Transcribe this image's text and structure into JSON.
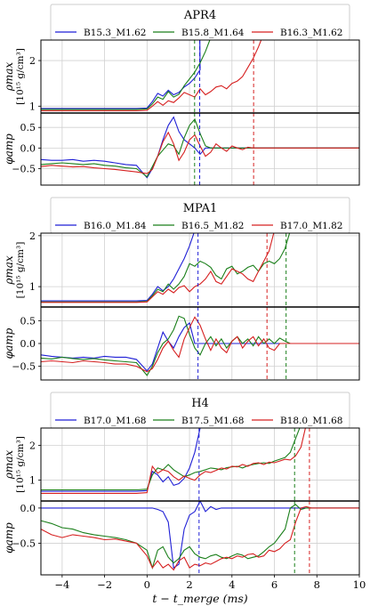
{
  "chart_data": {
    "type": "line",
    "xlabel": "t − t_merge (ms)",
    "xlim": [
      -5,
      10
    ],
    "xticks": [
      -4,
      -2,
      0,
      2,
      4,
      6,
      8,
      10
    ],
    "colors": [
      "#1f1fd6",
      "#1a7f1a",
      "#d62020"
    ],
    "x": [
      -5,
      -4.5,
      -4,
      -3.5,
      -3,
      -2.5,
      -2,
      -1.5,
      -1,
      -0.5,
      0,
      0.25,
      0.5,
      0.75,
      1,
      1.25,
      1.5,
      1.75,
      2,
      2.25,
      2.5,
      2.75,
      3,
      3.25,
      3.5,
      3.75,
      4,
      4.25,
      4.5,
      4.75,
      5,
      5.25,
      5.5,
      5.75,
      6,
      6.25,
      6.5,
      6.75,
      7,
      7.25,
      7.5,
      7.75,
      8,
      8.5,
      9,
      9.5,
      10
    ],
    "panels": [
      {
        "title": "APR4",
        "legend": [
          "B15.3_M1.62",
          "B15.8_M1.64",
          "B16.3_M1.62"
        ],
        "rho": {
          "ylabel_main": "ρmax",
          "ylabel_unit": "[10¹⁵ g/cm³]",
          "yrange": [
            0.85,
            2.45
          ],
          "yticks": [
            1,
            2
          ],
          "series": [
            [
              0.95,
              0.95,
              0.95,
              0.95,
              0.95,
              0.95,
              0.95,
              0.95,
              0.95,
              0.95,
              0.96,
              1.1,
              1.28,
              1.22,
              1.35,
              1.25,
              1.3,
              1.42,
              1.5,
              1.62,
              1.8
            ],
            [
              0.93,
              0.93,
              0.93,
              0.93,
              0.93,
              0.93,
              0.93,
              0.93,
              0.93,
              0.93,
              0.94,
              1.05,
              1.2,
              1.15,
              1.32,
              1.2,
              1.26,
              1.45,
              1.6,
              1.75,
              1.95,
              2.2,
              2.5
            ],
            [
              0.9,
              0.9,
              0.9,
              0.9,
              0.9,
              0.9,
              0.9,
              0.9,
              0.9,
              0.9,
              0.91,
              1.0,
              1.1,
              1.02,
              1.12,
              1.08,
              1.18,
              1.3,
              1.25,
              1.2,
              1.38,
              1.25,
              1.32,
              1.42,
              1.45,
              1.38,
              1.5,
              1.55,
              1.65,
              1.85,
              2.05,
              2.3,
              2.6
            ]
          ],
          "series_ends": [
            2.48,
            2.24,
            5.02
          ]
        },
        "phase": {
          "ylabel": "φamp",
          "yrange": [
            -0.9,
            0.85
          ],
          "yticks": [
            0.5,
            0.0,
            -0.5
          ],
          "yticklabels": [
            "0.5",
            "0.0",
            "−0.5"
          ],
          "series": [
            [
              -0.28,
              -0.3,
              -0.3,
              -0.28,
              -0.32,
              -0.3,
              -0.32,
              -0.36,
              -0.4,
              -0.42,
              -0.72,
              -0.5,
              -0.2,
              0.2,
              0.55,
              0.75,
              0.4,
              0.2,
              0.1,
              0.0,
              -0.15,
              0.0,
              0.0,
              0.0,
              0.0,
              0.0,
              0.0,
              0.0,
              0.0,
              0.0,
              0.0,
              0.0,
              0.0,
              0.0,
              0.0,
              0.0,
              0.0,
              0.0,
              0.0,
              0.0,
              0.0,
              0.0,
              0.0,
              0.0,
              0.0,
              0.0,
              0.0
            ],
            [
              -0.4,
              -0.38,
              -0.36,
              -0.38,
              -0.4,
              -0.38,
              -0.42,
              -0.44,
              -0.48,
              -0.5,
              -0.7,
              -0.45,
              -0.2,
              -0.05,
              0.1,
              0.05,
              -0.15,
              0.25,
              0.55,
              0.7,
              0.35,
              0.05,
              0.0,
              0.0,
              0.0,
              0.0,
              0.0,
              0.0,
              0.0,
              0.0,
              0.0,
              0.0,
              0.0,
              0.0,
              0.0,
              0.0,
              0.0,
              0.0,
              0.0,
              0.0,
              0.0,
              0.0,
              0.0,
              0.0,
              0.0,
              0.0,
              0.0
            ],
            [
              -0.45,
              -0.42,
              -0.44,
              -0.46,
              -0.45,
              -0.48,
              -0.5,
              -0.52,
              -0.55,
              -0.58,
              -0.62,
              -0.52,
              -0.2,
              0.15,
              0.38,
              0.1,
              -0.3,
              -0.1,
              0.2,
              0.32,
              0.05,
              -0.2,
              -0.1,
              0.1,
              0.0,
              -0.08,
              0.05,
              0.0,
              -0.04,
              0.02,
              0.0,
              0.0,
              0.0,
              0.0,
              0.0,
              0.0,
              0.0,
              0.0,
              0.0,
              0.0,
              0.0,
              0.0,
              0.0,
              0.0,
              0.0,
              0.0,
              0.0
            ]
          ]
        },
        "vlines": [
          2.48,
          2.24,
          5.02
        ]
      },
      {
        "title": "MPA1",
        "legend": [
          "B16.0_M1.84",
          "B16.5_M1.82",
          "B17.0_M1.82"
        ],
        "rho": {
          "ylabel_main": "ρmax",
          "ylabel_unit": "[10¹⁵ g/cm³]",
          "yrange": [
            0.6,
            2.05
          ],
          "yticks": [
            1,
            2
          ],
          "series": [
            [
              0.72,
              0.72,
              0.72,
              0.72,
              0.72,
              0.72,
              0.72,
              0.72,
              0.72,
              0.72,
              0.73,
              0.85,
              1.0,
              0.92,
              1.0,
              1.15,
              1.35,
              1.55,
              1.8,
              2.1
            ],
            [
              0.7,
              0.7,
              0.7,
              0.7,
              0.7,
              0.7,
              0.7,
              0.7,
              0.7,
              0.7,
              0.71,
              0.82,
              0.95,
              0.9,
              1.05,
              0.95,
              1.05,
              1.2,
              1.45,
              1.4,
              1.5,
              1.45,
              1.38,
              1.22,
              1.15,
              1.35,
              1.4,
              1.25,
              1.3,
              1.38,
              1.42,
              1.3,
              1.45,
              1.5,
              1.45,
              1.55,
              1.75,
              2.1
            ],
            [
              0.69,
              0.69,
              0.69,
              0.69,
              0.69,
              0.69,
              0.69,
              0.69,
              0.69,
              0.69,
              0.7,
              0.8,
              0.9,
              0.85,
              0.95,
              0.88,
              0.98,
              1.02,
              0.9,
              1.0,
              1.05,
              1.15,
              1.3,
              1.1,
              1.05,
              1.2,
              1.35,
              1.3,
              1.25,
              1.15,
              1.1,
              1.3,
              1.5,
              1.7,
              2.1
            ]
          ],
          "series_ends": [
            2.4,
            6.55,
            5.65
          ]
        },
        "phase": {
          "ylabel": "φamp",
          "yrange": [
            -0.8,
            0.8
          ],
          "yticks": [
            0.5,
            0.0,
            -0.5
          ],
          "yticklabels": [
            "0.5",
            "0.0",
            "−0.5"
          ],
          "series": [
            [
              -0.25,
              -0.28,
              -0.3,
              -0.32,
              -0.3,
              -0.32,
              -0.28,
              -0.3,
              -0.3,
              -0.35,
              -0.6,
              -0.45,
              -0.1,
              0.25,
              0.05,
              -0.1,
              0.15,
              0.35,
              0.45,
              0.0,
              0.0,
              0.0,
              0.0,
              0.0,
              0.0,
              0.0,
              0.0,
              0.0,
              0.0,
              0.0,
              0.0,
              0.0,
              0.0,
              0.0,
              0.0,
              0.0,
              0.0,
              0.0,
              0.0,
              0.0,
              0.0,
              0.0,
              0.0,
              0.0,
              0.0,
              0.0,
              0.0
            ],
            [
              -0.32,
              -0.34,
              -0.3,
              -0.33,
              -0.35,
              -0.33,
              -0.36,
              -0.38,
              -0.4,
              -0.42,
              -0.7,
              -0.5,
              -0.2,
              0.0,
              0.1,
              0.3,
              0.6,
              0.55,
              0.2,
              -0.1,
              -0.25,
              0.0,
              0.15,
              -0.05,
              0.1,
              -0.1,
              0.05,
              0.15,
              0.0,
              0.1,
              -0.05,
              0.15,
              0.0,
              0.1,
              0.0,
              0.12,
              0.05,
              0.0,
              0.0,
              0.0,
              0.0,
              0.0,
              0.0,
              0.0,
              0.0,
              0.0,
              0.0
            ],
            [
              -0.4,
              -0.38,
              -0.4,
              -0.42,
              -0.38,
              -0.4,
              -0.42,
              -0.45,
              -0.45,
              -0.5,
              -0.62,
              -0.55,
              -0.35,
              -0.1,
              0.05,
              -0.15,
              -0.3,
              0.1,
              0.35,
              0.58,
              0.4,
              0.1,
              -0.15,
              0.1,
              -0.1,
              -0.2,
              0.05,
              0.15,
              -0.1,
              0.05,
              0.15,
              -0.05,
              0.1,
              -0.1,
              -0.15,
              0.0,
              0.0,
              0.0,
              0.0,
              0.0,
              0.0,
              0.0,
              0.0,
              0.0,
              0.0,
              0.0,
              0.0
            ]
          ]
        },
        "vlines": [
          2.4,
          6.55,
          5.65
        ]
      },
      {
        "title": "H4",
        "legend": [
          "B17.0_M1.68",
          "B17.5_M1.68",
          "B18.0_M1.68"
        ],
        "rho": {
          "ylabel_main": "ρmax",
          "ylabel_unit": "[10¹⁵ g/cm³]",
          "yrange": [
            0.4,
            2.5
          ],
          "yticks": [
            1,
            2
          ],
          "series": [
            [
              0.68,
              0.68,
              0.68,
              0.68,
              0.68,
              0.68,
              0.68,
              0.68,
              0.68,
              0.68,
              0.7,
              1.25,
              1.15,
              0.95,
              1.1,
              0.85,
              0.9,
              1.05,
              1.35,
              1.8,
              2.5
            ],
            [
              0.72,
              0.72,
              0.72,
              0.72,
              0.72,
              0.72,
              0.72,
              0.72,
              0.72,
              0.72,
              0.74,
              1.15,
              1.35,
              1.3,
              1.45,
              1.3,
              1.2,
              1.1,
              1.15,
              1.22,
              1.25,
              1.3,
              1.35,
              1.33,
              1.3,
              1.36,
              1.38,
              1.4,
              1.35,
              1.42,
              1.45,
              1.48,
              1.5,
              1.48,
              1.55,
              1.6,
              1.65,
              1.8,
              2.2,
              2.6
            ],
            [
              0.62,
              0.62,
              0.62,
              0.62,
              0.62,
              0.62,
              0.62,
              0.62,
              0.62,
              0.62,
              0.64,
              1.4,
              1.2,
              1.3,
              1.25,
              1.1,
              1.0,
              1.12,
              1.05,
              1.0,
              1.15,
              1.25,
              1.22,
              1.28,
              1.35,
              1.32,
              1.4,
              1.38,
              1.45,
              1.4,
              1.48,
              1.5,
              1.45,
              1.52,
              1.5,
              1.55,
              1.6,
              1.58,
              1.7,
              1.95,
              2.6
            ]
          ],
          "series_ends": [
            2.45,
            6.95,
            7.65
          ]
        },
        "phase": {
          "ylabel": "φamp",
          "yrange": [
            -0.95,
            0.1
          ],
          "yticks": [
            0.0,
            -0.5
          ],
          "yticklabels": [
            "0.0",
            "−0.5"
          ],
          "series": [
            [
              0.0,
              0.0,
              0.0,
              0.0,
              0.0,
              0.0,
              0.0,
              0.0,
              0.0,
              0.0,
              0.0,
              0.0,
              -0.02,
              -0.05,
              -0.2,
              -0.85,
              -0.8,
              -0.3,
              -0.1,
              -0.05,
              0.1,
              -0.05,
              0.02,
              -0.02,
              0.0,
              0.0,
              0.0,
              0.0,
              0.0,
              0.0,
              0.0,
              0.0,
              0.0,
              0.0,
              0.0,
              0.0,
              0.0,
              0.0,
              0.0,
              0.0,
              0.0,
              0.0,
              0.0,
              0.0,
              0.0,
              0.0,
              0.0
            ],
            [
              -0.18,
              -0.22,
              -0.28,
              -0.3,
              -0.35,
              -0.38,
              -0.4,
              -0.42,
              -0.45,
              -0.5,
              -0.6,
              -0.85,
              -0.6,
              -0.55,
              -0.7,
              -0.78,
              -0.72,
              -0.6,
              -0.55,
              -0.65,
              -0.7,
              -0.72,
              -0.68,
              -0.66,
              -0.7,
              -0.72,
              -0.68,
              -0.65,
              -0.67,
              -0.72,
              -0.7,
              -0.68,
              -0.62,
              -0.55,
              -0.5,
              -0.4,
              -0.3,
              0.0,
              0.05,
              -0.02,
              0.0,
              0.0,
              0.0,
              0.0,
              0.0,
              0.0,
              0.0
            ],
            [
              -0.3,
              -0.38,
              -0.42,
              -0.38,
              -0.4,
              -0.42,
              -0.45,
              -0.44,
              -0.47,
              -0.5,
              -0.68,
              -0.85,
              -0.75,
              -0.85,
              -0.8,
              -0.88,
              -0.75,
              -0.7,
              -0.85,
              -0.8,
              -0.82,
              -0.78,
              -0.8,
              -0.76,
              -0.72,
              -0.7,
              -0.72,
              -0.68,
              -0.7,
              -0.66,
              -0.65,
              -0.7,
              -0.68,
              -0.6,
              -0.62,
              -0.58,
              -0.5,
              -0.45,
              -0.2,
              0.0,
              0.02,
              0.0,
              0.0,
              0.0,
              0.0,
              0.0,
              0.0
            ]
          ]
        },
        "vlines": [
          2.45,
          6.95,
          7.65
        ]
      }
    ]
  }
}
